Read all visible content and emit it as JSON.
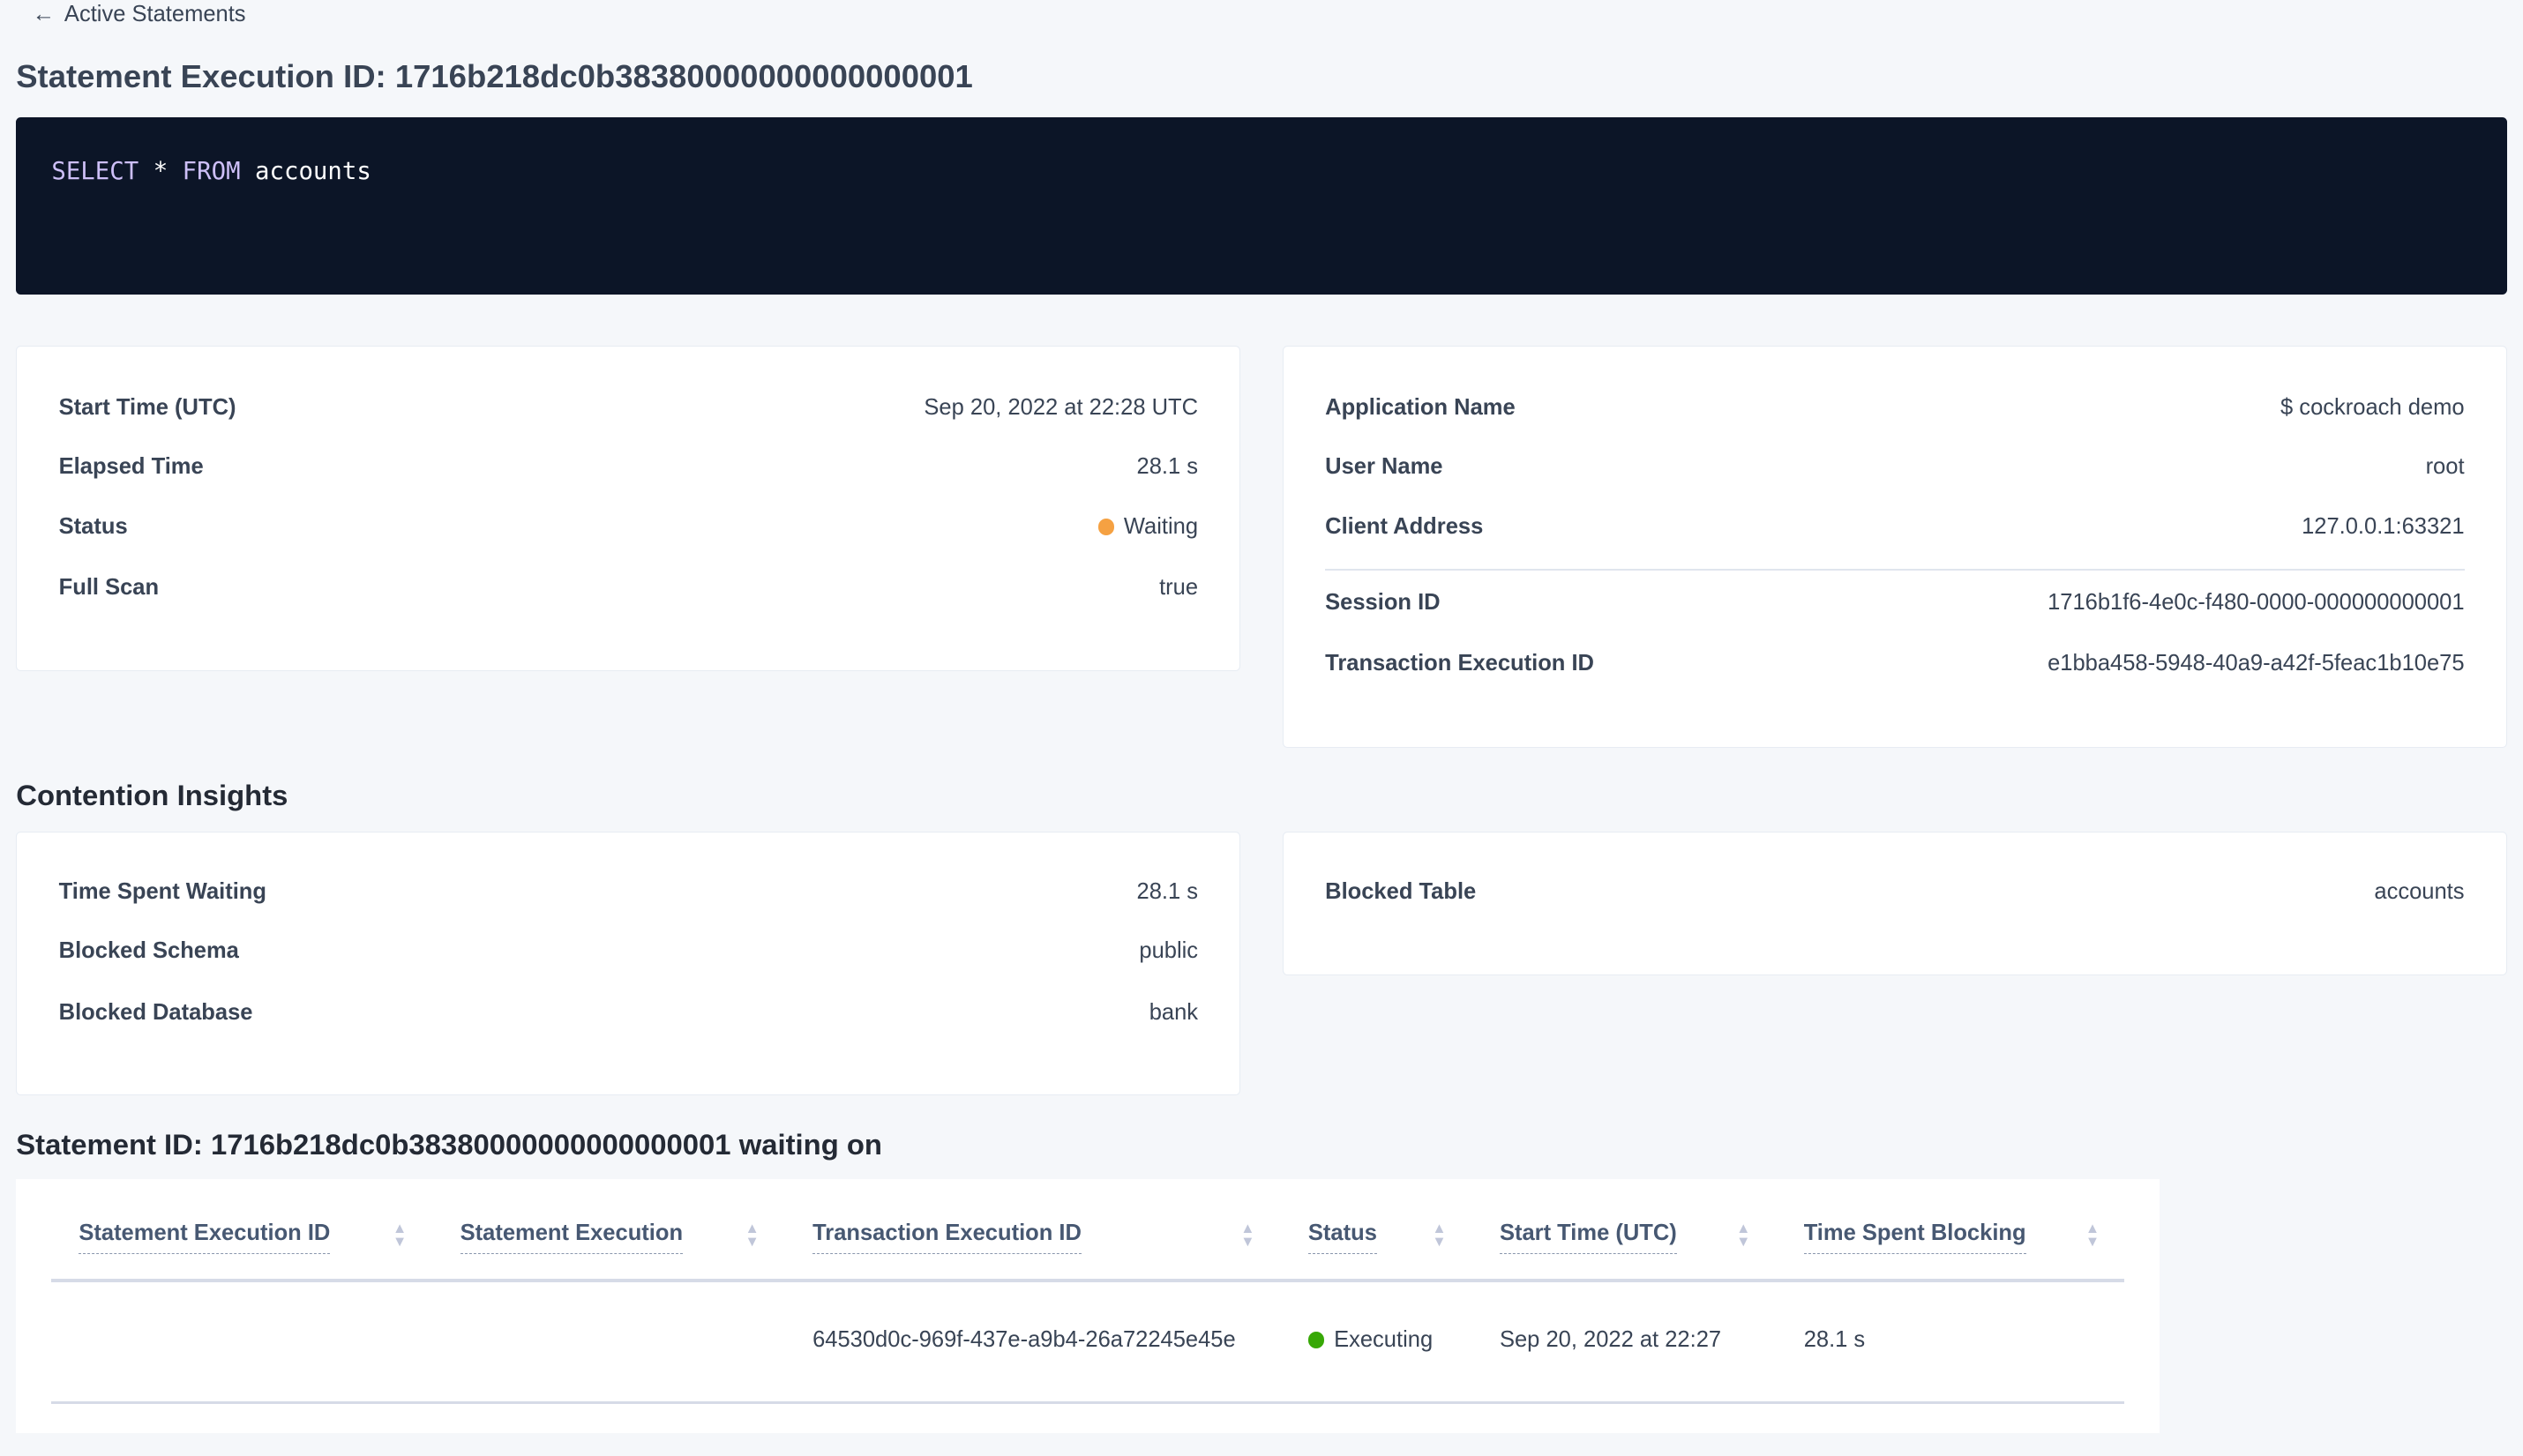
{
  "breadcrumb": {
    "back_label": "Active Statements",
    "icon": "arrow-left-icon"
  },
  "page_title": "Statement Execution ID: 1716b218dc0b38380000000000000001",
  "sql": {
    "keyword1": "SELECT",
    "star": "*",
    "keyword2": "FROM",
    "table": "accounts"
  },
  "summary_left": [
    {
      "label": "Start Time (UTC)",
      "value": "Sep 20, 2022 at 22:28 UTC"
    },
    {
      "label": "Elapsed Time",
      "value": "28.1 s"
    },
    {
      "label": "Status",
      "value": "Waiting",
      "dot_color": "#f5a142"
    },
    {
      "label": "Full Scan",
      "value": "true"
    }
  ],
  "summary_right": [
    {
      "label": "Application Name",
      "value": "$ cockroach demo"
    },
    {
      "label": "User Name",
      "value": "root"
    },
    {
      "label": "Client Address",
      "value": "127.0.0.1:63321"
    },
    {
      "label": "Session ID",
      "value": "1716b1f6-4e0c-f480-0000-000000000001"
    },
    {
      "label": "Transaction Execution ID",
      "value": "e1bba458-5948-40a9-a42f-5feac1b10e75"
    }
  ],
  "contention": {
    "heading": "Contention Insights",
    "left": [
      {
        "label": "Time Spent Waiting",
        "value": "28.1 s"
      },
      {
        "label": "Blocked Schema",
        "value": "public"
      },
      {
        "label": "Blocked Database",
        "value": "bank"
      }
    ],
    "right": [
      {
        "label": "Blocked Table",
        "value": "accounts"
      }
    ]
  },
  "waiting": {
    "heading": "Statement ID: 1716b218dc0b38380000000000000001 waiting on",
    "columns": [
      "Statement Execution ID",
      "Statement Execution",
      "Transaction Execution ID",
      "Status",
      "Start Time (UTC)",
      "Time Spent Blocking"
    ],
    "rows": [
      {
        "statement_execution_id": "",
        "statement_execution": "",
        "transaction_execution_id": "64530d0c-969f-437e-a9b4-26a72245e45e",
        "status": "Executing",
        "status_color": "#37a806",
        "start_time": "Sep 20, 2022 at 22:27",
        "time_spent_blocking": "28.1 s"
      }
    ]
  }
}
